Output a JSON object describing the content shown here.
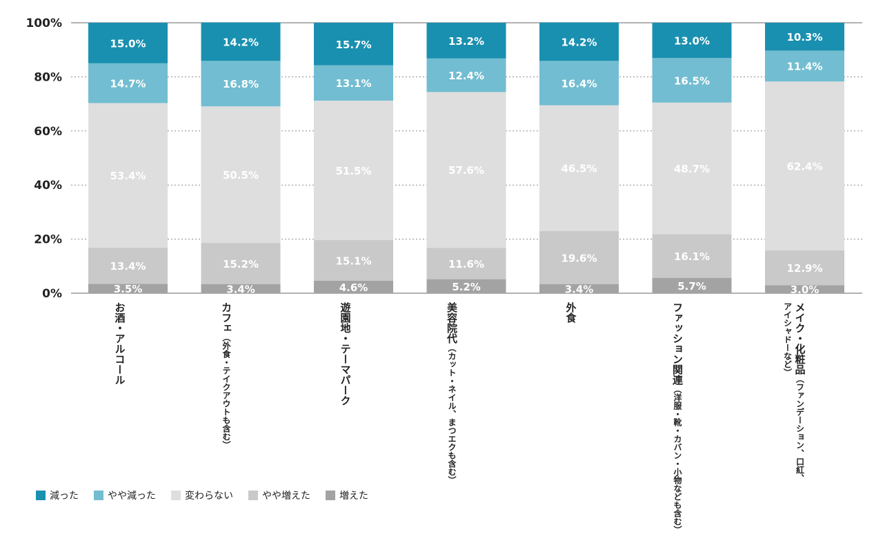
{
  "chart_data": {
    "type": "bar",
    "stacked": true,
    "orientation": "vertical",
    "ylim": [
      0,
      100
    ],
    "yticks": [
      "0%",
      "20%",
      "40%",
      "60%",
      "80%",
      "100%"
    ],
    "grid": "dotted horizontal",
    "legend_placement": "bottom-left",
    "categories": [
      {
        "main": "お酒・アルコール",
        "sub": ""
      },
      {
        "main": "カフェ",
        "sub": "（外食・テイクアウトも含む）"
      },
      {
        "main": "遊園地・テーマパーク",
        "sub": ""
      },
      {
        "main": "美容院代",
        "sub": "（カット・ネイル、まつエクも含む）"
      },
      {
        "main": "外食",
        "sub": ""
      },
      {
        "main": "ファッション関連",
        "sub": "（洋服・靴・カバン・小物なども含む）"
      },
      {
        "main": "メイク・化粧品",
        "sub": "（ファンデーション、口紅、\nアイシャドーなど）"
      }
    ],
    "series": [
      {
        "name": "増えた",
        "color": "#a3a3a3",
        "values": [
          3.5,
          3.4,
          4.6,
          5.2,
          3.4,
          5.7,
          3.0
        ]
      },
      {
        "name": "やや増えた",
        "color": "#c9c9c9",
        "values": [
          13.4,
          15.2,
          15.1,
          11.6,
          19.6,
          16.1,
          12.9
        ]
      },
      {
        "name": "変わらない",
        "color": "#dedede",
        "values": [
          53.4,
          50.5,
          51.5,
          57.6,
          46.5,
          48.7,
          62.4
        ]
      },
      {
        "name": "やや減った",
        "color": "#72bdd1",
        "values": [
          14.7,
          16.8,
          13.1,
          12.4,
          16.4,
          16.5,
          11.4
        ]
      },
      {
        "name": "減った",
        "color": "#1a90b0",
        "values": [
          15.0,
          14.2,
          15.7,
          13.2,
          14.2,
          13.0,
          10.3
        ]
      }
    ],
    "legend_order": [
      "減った",
      "やや減った",
      "変わらない",
      "やや増えた",
      "増えた"
    ],
    "value_suffix": "%"
  }
}
